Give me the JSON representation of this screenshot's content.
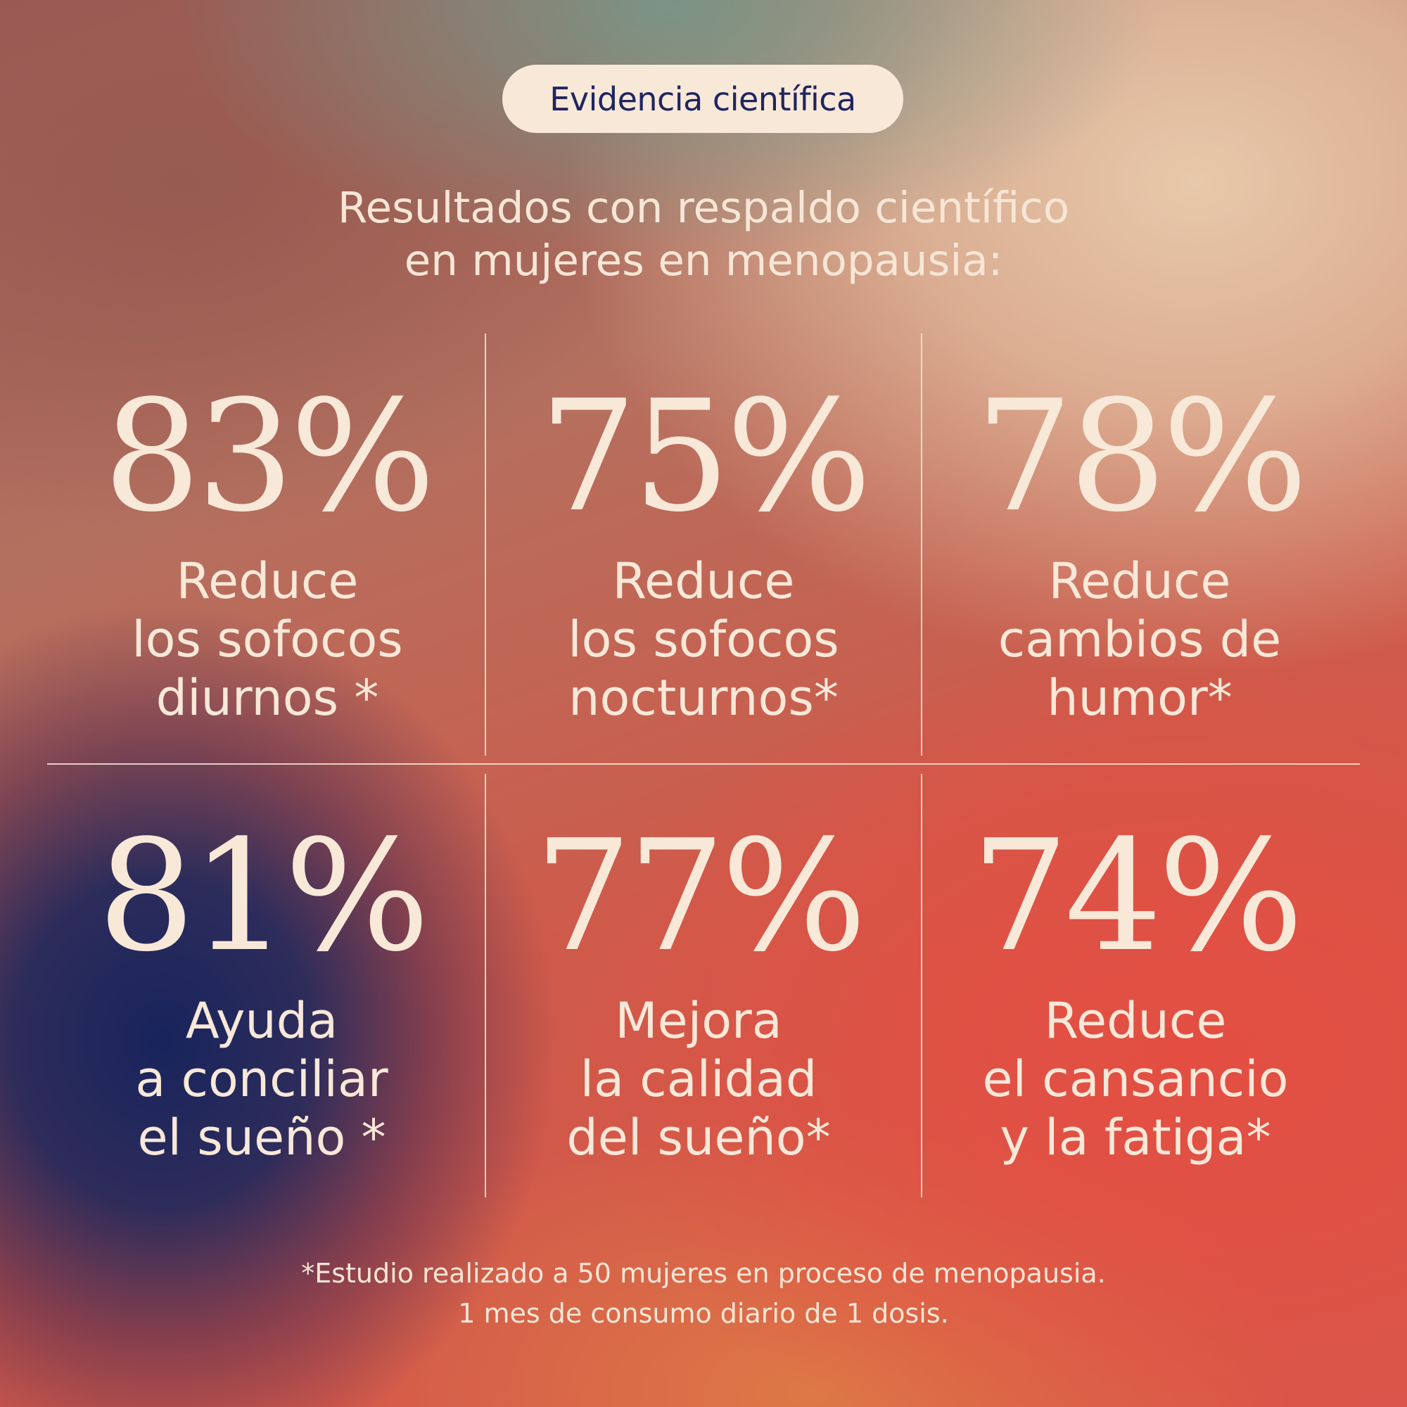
{
  "badge": {
    "label": "Evidencia científica"
  },
  "subtitle": "Resultados con respaldo científico\nen mujeres en menopausia:",
  "stats": [
    {
      "value": "83%",
      "description": "Reduce\nlos sofocos\ndiurnos *"
    },
    {
      "value": "75%",
      "description": "Reduce\nlos sofocos\nnocturnos*"
    },
    {
      "value": "78%",
      "description": "Reduce\ncambios de\nhumor*"
    },
    {
      "value": "81%",
      "description": "Ayuda\na conciliar\nel sueño *"
    },
    {
      "value": "77%",
      "description": "Mejora\nla calidad\ndel sueño*"
    },
    {
      "value": "74%",
      "description": "Reduce\nel cansancio\ny la fatiga*"
    }
  ],
  "footnote": "*Estudio realizado a 50 mujeres en proceso de menopausia.\n1 mes de consumo diario de 1 dosis.",
  "colors": {
    "text": "#f8e8d8",
    "badge_background": "#f8e8d8",
    "badge_text": "#1f2560"
  }
}
